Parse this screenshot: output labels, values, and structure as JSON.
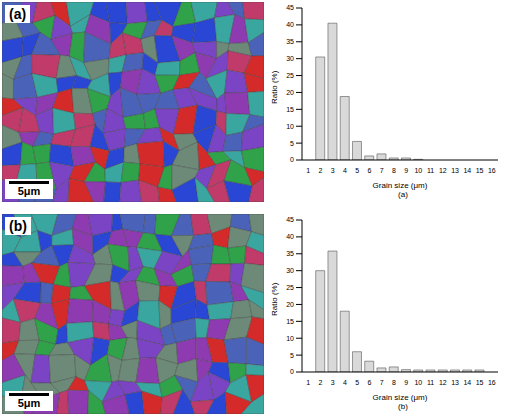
{
  "chart_data": [
    {
      "type": "bar",
      "categories": [
        "1",
        "2",
        "3",
        "4",
        "5",
        "6",
        "7",
        "8",
        "9",
        "10",
        "11",
        "12",
        "13",
        "14",
        "15",
        "16"
      ],
      "values": [
        0,
        30.5,
        40.5,
        18.8,
        5.5,
        1.2,
        1.8,
        0.6,
        0.6,
        0.2,
        0,
        0,
        0,
        0,
        0,
        0
      ],
      "color": "#d9d9d9",
      "x_label": "Grain size (μm)",
      "y_label": "Ratio (%)",
      "ylim": [
        0,
        45
      ],
      "yticks": [
        0,
        5,
        10,
        15,
        20,
        25,
        30,
        35,
        40,
        45
      ],
      "grid": false,
      "annotations": [
        "(a)"
      ]
    },
    {
      "type": "bar",
      "categories": [
        "1",
        "2",
        "3",
        "4",
        "5",
        "6",
        "7",
        "8",
        "9",
        "10",
        "11",
        "12",
        "13",
        "14",
        "15",
        "16"
      ],
      "values": [
        0,
        30,
        35.8,
        18,
        6,
        3.2,
        1.2,
        1.5,
        0.7,
        0.6,
        0.6,
        0.6,
        0.6,
        0.6,
        0.6,
        0
      ],
      "color": "#d9d9d9",
      "x_label": "Grain size (μm)",
      "y_label": "Ratio (%)",
      "ylim": [
        0,
        45
      ],
      "yticks": [
        0,
        5,
        10,
        15,
        20,
        25,
        30,
        35,
        40,
        45
      ],
      "grid": false,
      "annotations": [
        "(b)"
      ]
    }
  ],
  "images": [
    {
      "label": "(a)",
      "scale_bar": "5μm"
    },
    {
      "label": "(b)",
      "scale_bar": "5μm"
    }
  ]
}
